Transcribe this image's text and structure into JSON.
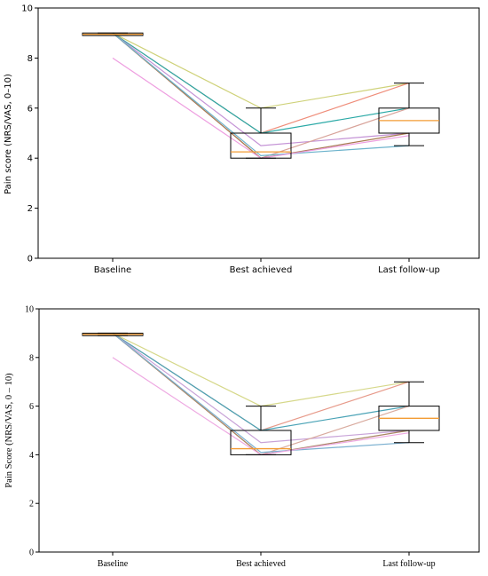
{
  "chart_data": [
    {
      "type": "box",
      "title": "",
      "xlabel": "",
      "ylabel": "Pain score (NRS/VAS, 0–10)",
      "categories": [
        "Baseline",
        "Best achieved",
        "Last follow-up"
      ],
      "ylim": [
        0,
        10
      ],
      "yticks": [
        "0",
        "2",
        "4",
        "6",
        "8",
        "10"
      ],
      "grid": false,
      "boxes": [
        {
          "category": "Baseline",
          "q1": 8.9,
          "median": 8.95,
          "q3": 9.0,
          "whisker_low": 8.9,
          "whisker_high": 9.0
        },
        {
          "category": "Best achieved",
          "q1": 4.0,
          "median": 4.25,
          "q3": 5.0,
          "whisker_low": 4.0,
          "whisker_high": 6.0
        },
        {
          "category": "Last follow-up",
          "q1": 5.0,
          "median": 5.5,
          "q3": 6.0,
          "whisker_low": 4.5,
          "whisker_high": 7.0
        }
      ],
      "patients": [
        {
          "values": [
            9,
            6,
            7
          ],
          "color": "#cfd27a"
        },
        {
          "values": [
            9,
            5,
            7
          ],
          "color": "#ef8d7a"
        },
        {
          "values": [
            9,
            5,
            6
          ],
          "color": "#2aa9a6"
        },
        {
          "values": [
            9,
            4.5,
            5
          ],
          "color": "#c493d6"
        },
        {
          "values": [
            9,
            4,
            6
          ],
          "color": "#d8a39a"
        },
        {
          "values": [
            9,
            4,
            5
          ],
          "color": "#a87a52"
        },
        {
          "values": [
            9,
            4.1,
            4.5
          ],
          "color": "#6db3cc"
        },
        {
          "values": [
            8,
            4,
            4.9
          ],
          "color": "#ee9ee0"
        }
      ]
    },
    {
      "type": "box",
      "title": "",
      "xlabel": "",
      "ylabel": "Pain Score (NRS/VAS, 0 – 10)",
      "categories": [
        "Baseline",
        "Best achieved",
        "Last follow-up"
      ],
      "ylim": [
        0,
        10
      ],
      "yticks": [
        "0",
        "2",
        "4",
        "6",
        "8",
        "10"
      ],
      "grid": false,
      "boxes": [
        {
          "category": "Baseline",
          "q1": 8.9,
          "median": 8.95,
          "q3": 9.0,
          "whisker_low": 8.9,
          "whisker_high": 9.0
        },
        {
          "category": "Best achieved",
          "q1": 4.0,
          "median": 4.25,
          "q3": 5.0,
          "whisker_low": 4.0,
          "whisker_high": 6.0
        },
        {
          "category": "Last follow-up",
          "q1": 5.0,
          "median": 5.5,
          "q3": 6.0,
          "whisker_low": 4.5,
          "whisker_high": 7.0
        }
      ],
      "patients": [
        {
          "values": [
            9,
            6,
            7
          ],
          "color": "#d6d88a"
        },
        {
          "values": [
            9,
            5,
            7
          ],
          "color": "#e79a8a"
        },
        {
          "values": [
            9,
            5,
            6
          ],
          "color": "#4aa3b6"
        },
        {
          "values": [
            9,
            4.5,
            5
          ],
          "color": "#c8a3d8"
        },
        {
          "values": [
            9,
            4,
            6
          ],
          "color": "#d9ab9f"
        },
        {
          "values": [
            9,
            4,
            5
          ],
          "color": "#a88562"
        },
        {
          "values": [
            9,
            4.1,
            4.5
          ],
          "color": "#7bb0d0"
        },
        {
          "values": [
            8,
            4,
            4.9
          ],
          "color": "#eea9e2"
        }
      ]
    }
  ],
  "colors": {
    "median": "#f39c34",
    "box": "#000000",
    "axis": "#000000"
  }
}
